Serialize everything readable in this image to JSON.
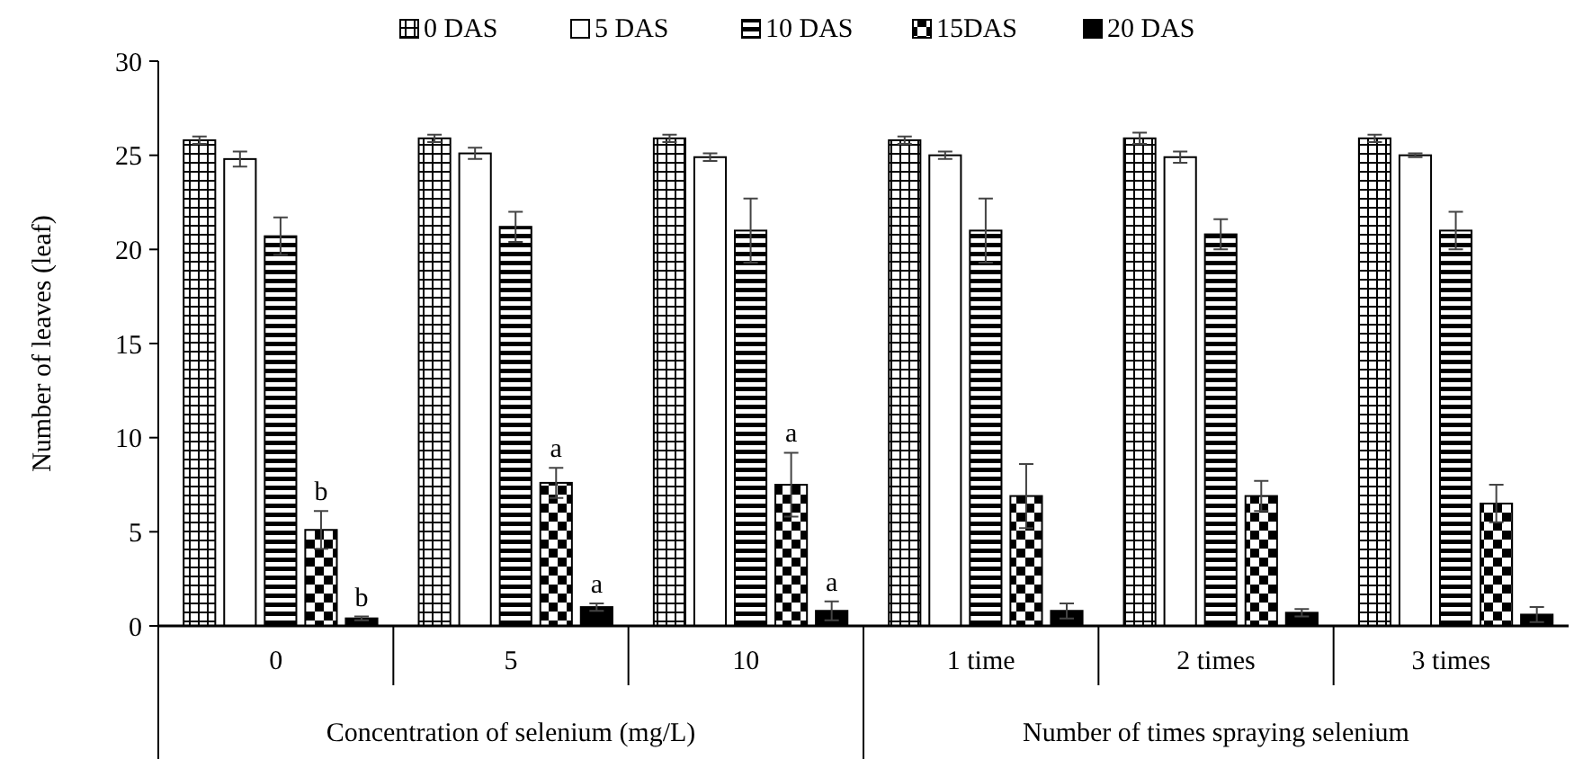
{
  "chart_data": {
    "type": "bar",
    "ylabel": "Number of leaves (leaf)",
    "categories": [
      "0",
      "5",
      "10",
      "1 time",
      "2 times",
      "3 times"
    ],
    "series": [
      {
        "name": "0 DAS",
        "color": "#000000",
        "values": [
          25.8,
          25.9,
          25.9,
          25.8,
          25.9,
          25.9
        ],
        "errors": [
          0.2,
          0.2,
          0.2,
          0.2,
          0.3,
          0.2
        ]
      },
      {
        "name": "5 DAS",
        "color": "#ffffff",
        "values": [
          24.8,
          25.1,
          24.9,
          25.0,
          24.9,
          25.0
        ],
        "errors": [
          0.4,
          0.3,
          0.2,
          0.2,
          0.3,
          0.1
        ]
      },
      {
        "name": "10 DAS",
        "color": "#000000",
        "values": [
          20.7,
          21.2,
          21.0,
          21.0,
          20.8,
          21.0
        ],
        "errors": [
          1.0,
          0.8,
          1.7,
          1.7,
          0.8,
          1.0
        ]
      },
      {
        "name": "15DAS",
        "color": "#000000",
        "values": [
          5.1,
          7.6,
          7.5,
          6.9,
          6.9,
          6.5
        ],
        "errors": [
          1.0,
          0.8,
          1.7,
          1.7,
          0.8,
          1.0
        ],
        "value_labels": [
          "b",
          "a",
          "a",
          null,
          null,
          null
        ]
      },
      {
        "name": "20 DAS",
        "color": "#000000",
        "values": [
          0.4,
          1.0,
          0.8,
          0.8,
          0.7,
          0.6
        ],
        "errors": [
          0.1,
          0.2,
          0.5,
          0.4,
          0.2,
          0.4
        ],
        "value_labels": [
          "b",
          "a",
          "a",
          null,
          null,
          null
        ]
      }
    ],
    "ylim": [
      0,
      30
    ],
    "yticks": [
      0,
      5,
      10,
      15,
      20,
      25,
      30
    ],
    "grid": false,
    "legend": "top",
    "annotations": [
      "Concentration of selenium (mg/L)",
      "Number of times spraying selenium"
    ]
  }
}
